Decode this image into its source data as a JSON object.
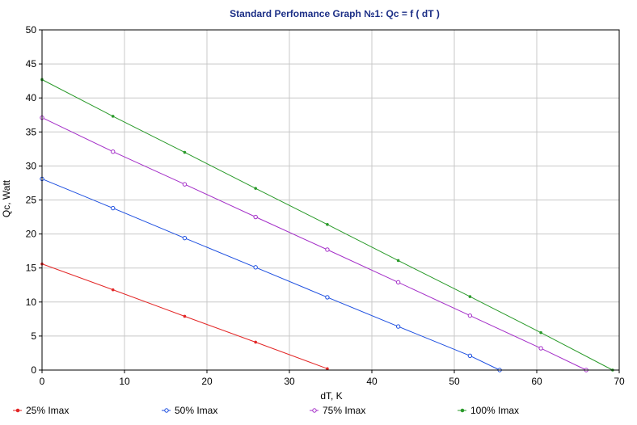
{
  "chart_data": {
    "type": "line",
    "title": "Standard Perfomance Graph №1: Qc = f ( dT )",
    "xlabel": "dT, K",
    "ylabel": "Qc, Watt",
    "xlim": [
      0,
      70
    ],
    "ylim": [
      0,
      50
    ],
    "x_ticks": [
      "0",
      "10",
      "20",
      "30",
      "40",
      "50",
      "60",
      "70"
    ],
    "y_ticks": [
      "0",
      "5",
      "10",
      "15",
      "20",
      "25",
      "30",
      "35",
      "40",
      "45",
      "50"
    ],
    "grid": true,
    "legend_position": "bottom",
    "series": [
      {
        "name": "25% Imax",
        "color": "#e32727",
        "x": [
          0,
          8.6,
          17.3,
          25.9,
          34.6
        ],
        "y": [
          15.6,
          11.8,
          7.9,
          4.1,
          0.2
        ]
      },
      {
        "name": "50% Imax",
        "color": "#1c4ee0",
        "x": [
          0,
          8.6,
          17.3,
          25.9,
          34.6,
          43.2,
          51.9,
          55.5
        ],
        "y": [
          28.1,
          23.8,
          19.4,
          15.1,
          10.7,
          6.4,
          2.1,
          0
        ]
      },
      {
        "name": "75% Imax",
        "color": "#a42fc8",
        "x": [
          0,
          8.6,
          17.3,
          25.9,
          34.6,
          43.2,
          51.9,
          60.5,
          66
        ],
        "y": [
          37.1,
          32.1,
          27.3,
          22.5,
          17.7,
          12.9,
          8.0,
          3.2,
          0
        ]
      },
      {
        "name": "100% Imax",
        "color": "#2a9a2a",
        "x": [
          0,
          8.6,
          17.3,
          25.9,
          34.6,
          43.2,
          51.9,
          60.5,
          69.2
        ],
        "y": [
          42.7,
          37.3,
          32.0,
          26.7,
          21.4,
          16.1,
          10.8,
          5.5,
          0
        ]
      }
    ]
  }
}
